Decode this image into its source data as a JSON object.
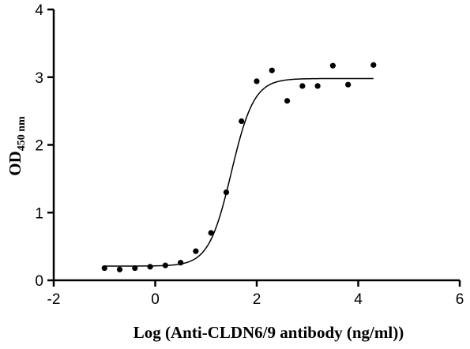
{
  "chart_data": {
    "type": "scatter",
    "xlabel": "Log (Anti-CLDN6/9 antibody (ng/ml))",
    "ylabel_main": "OD",
    "ylabel_sub": "450 nm",
    "xlim": [
      -2,
      6
    ],
    "ylim": [
      0,
      4
    ],
    "xticks": [
      -2,
      0,
      2,
      4,
      6
    ],
    "yticks": [
      0,
      1,
      2,
      3,
      4
    ],
    "grid": false,
    "points": [
      {
        "x": -1.0,
        "y": 0.18
      },
      {
        "x": -0.7,
        "y": 0.16
      },
      {
        "x": -0.4,
        "y": 0.18
      },
      {
        "x": -0.1,
        "y": 0.2
      },
      {
        "x": 0.2,
        "y": 0.22
      },
      {
        "x": 0.5,
        "y": 0.26
      },
      {
        "x": 0.8,
        "y": 0.43
      },
      {
        "x": 1.1,
        "y": 0.7
      },
      {
        "x": 1.4,
        "y": 1.3
      },
      {
        "x": 1.7,
        "y": 2.35
      },
      {
        "x": 2.0,
        "y": 2.94
      },
      {
        "x": 2.3,
        "y": 3.1
      },
      {
        "x": 2.6,
        "y": 2.65
      },
      {
        "x": 2.9,
        "y": 2.87
      },
      {
        "x": 3.2,
        "y": 2.87
      },
      {
        "x": 3.5,
        "y": 3.17
      },
      {
        "x": 3.8,
        "y": 2.89
      },
      {
        "x": 4.3,
        "y": 3.18
      }
    ],
    "fit_curve": {
      "model": "4PL",
      "bottom": 0.21,
      "top": 2.98,
      "log_ec50": 1.5,
      "hill_slope": 1.95,
      "x_range": [
        -1.0,
        4.3
      ]
    }
  }
}
